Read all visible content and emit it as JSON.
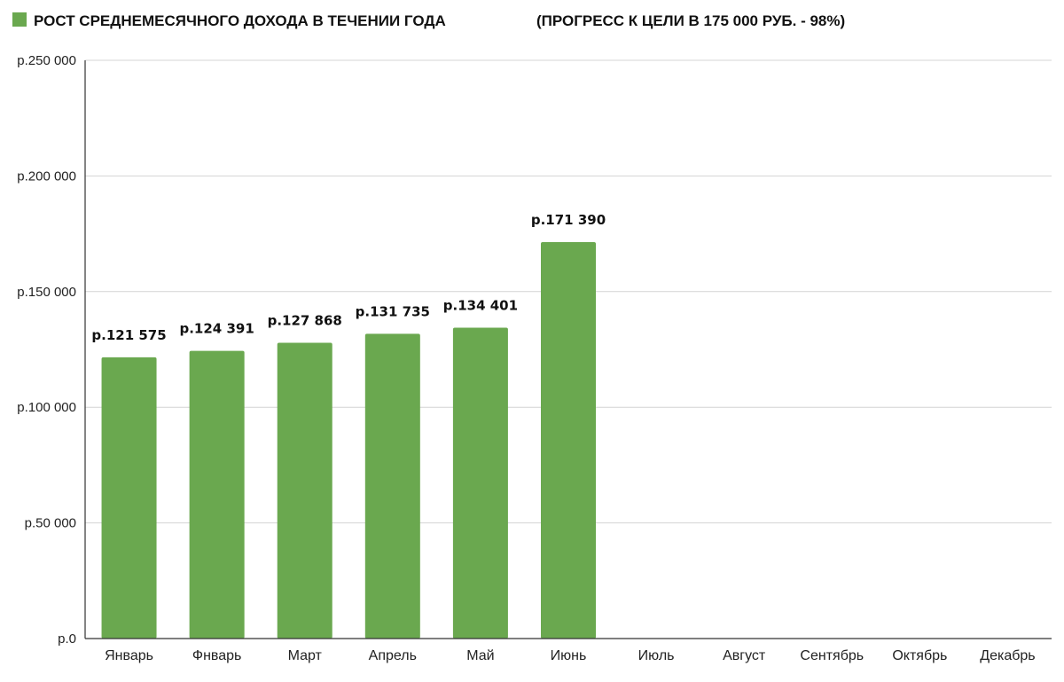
{
  "chart_data": {
    "type": "bar",
    "legend": {
      "series_name": "РОСТ СРЕДНЕМЕСЯЧНОГО ДОХОДА В ТЕЧЕНИИ ГОДА",
      "note": "(ПРОГРЕСС К ЦЕЛИ В 175 000 РУБ. - 98%)",
      "position": "top-left"
    },
    "categories": [
      "Январь",
      "Фнварь",
      "Март",
      "Апрель",
      "Май",
      "Июнь",
      "Июль",
      "Август",
      "Сентябрь",
      "Октябрь",
      "Декабрь"
    ],
    "series": [
      {
        "name": "РОСТ СРЕДНЕМЕСЯЧНОГО ДОХОДА В ТЕЧЕНИИ ГОДА",
        "values": [
          121575,
          124391,
          127868,
          131735,
          134401,
          171390,
          null,
          null,
          null,
          null,
          null
        ],
        "data_labels": [
          "р.121 575",
          "р.124 391",
          "р.127 868",
          "р.131 735",
          "р.134 401",
          "р.171 390",
          "",
          "",
          "",
          "",
          ""
        ]
      }
    ],
    "ylim": [
      0,
      250000
    ],
    "y_ticks": [
      0,
      50000,
      100000,
      150000,
      200000,
      250000
    ],
    "y_tick_labels": [
      "р.0",
      "р.50 000",
      "р.100 000",
      "р.150 000",
      "р.200 000",
      "р.250 000"
    ],
    "grid": true,
    "colors": {
      "bar": "#6aa84f",
      "legend_swatch": "#6aa84f"
    }
  }
}
